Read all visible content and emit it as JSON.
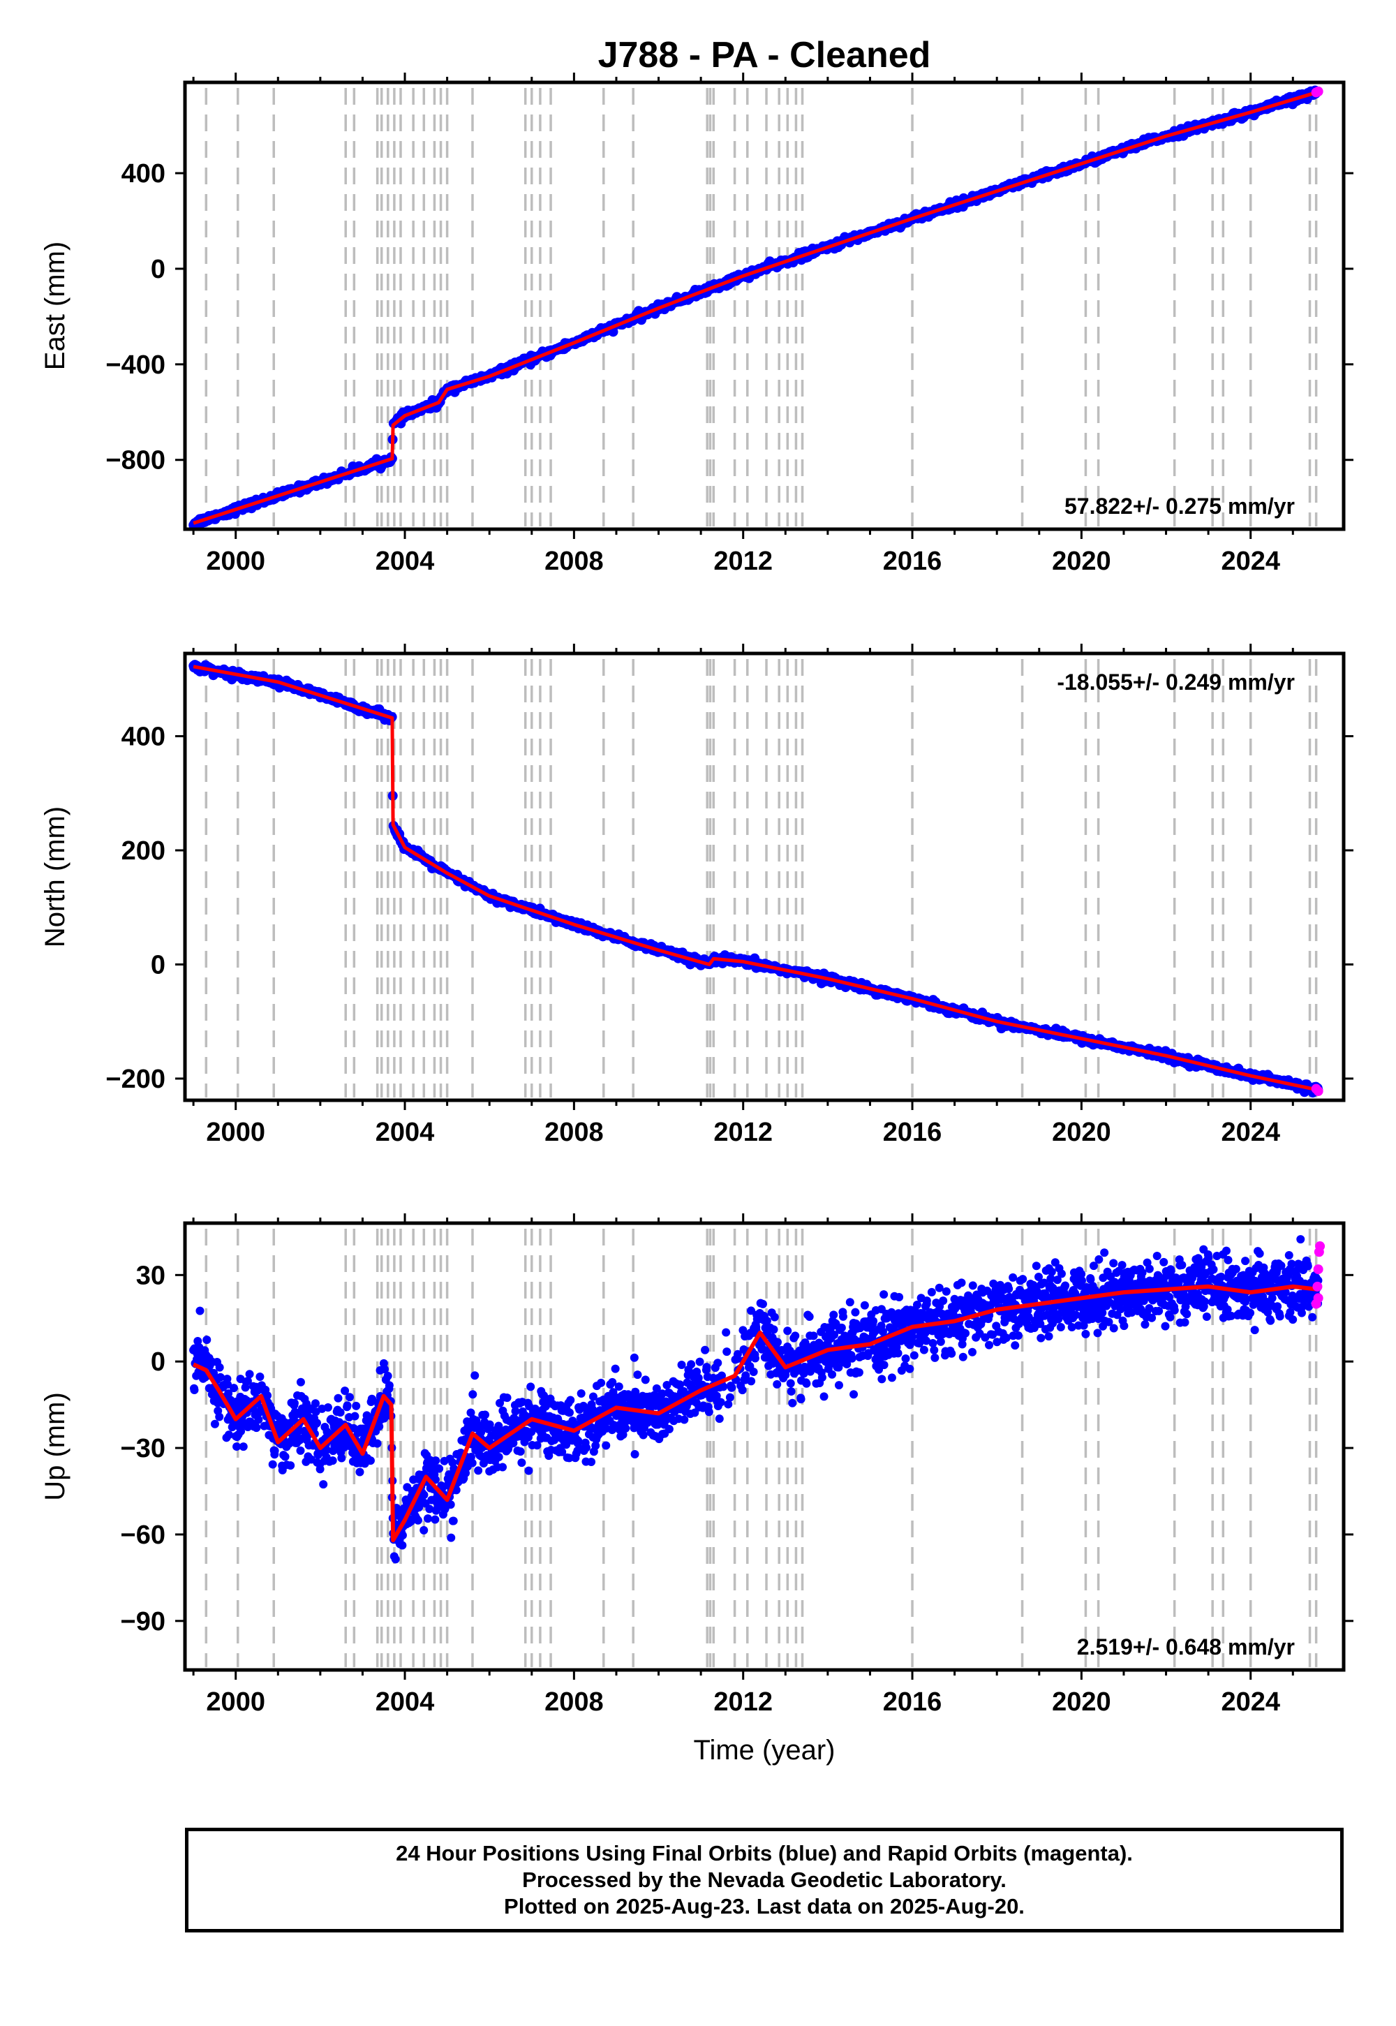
{
  "title": "J788  - PA - Cleaned",
  "footer": {
    "line1": "24 Hour Positions Using Final Orbits (blue) and Rapid Orbits (magenta).",
    "line2": "Processed by the Nevada Geodetic Laboratory.",
    "line3": "Plotted on 2025-Aug-23. Last data on 2025-Aug-20."
  },
  "colors": {
    "final_orbits": "#0000ff",
    "rapid_orbits": "#ff00ff",
    "model_fit": "#ff0000",
    "equipment_change_lines": "#bdbdbd"
  },
  "chart_data": [
    {
      "type": "scatter",
      "name": "east",
      "ylabel": "East (mm)",
      "xlabel": "",
      "xlim": [
        1998.8,
        2026.2
      ],
      "ylim": [
        -1090,
        780
      ],
      "x_ticks": [
        2000,
        2004,
        2008,
        2012,
        2016,
        2020,
        2024
      ],
      "y_ticks": [
        -800,
        -400,
        0,
        400
      ],
      "y_tick_labels": [
        "−800",
        "−400",
        "0",
        "400"
      ],
      "x_tick_labels": [
        "2000",
        "2004",
        "2008",
        "2012",
        "2016",
        "2020",
        "2024"
      ],
      "rate_label": "57.822+/- 0.275 mm/yr",
      "rate_label_position": "bottom-right",
      "grid": false,
      "line_points": [
        {
          "x": 1999.0,
          "y": -1065
        },
        {
          "x": 2003.7,
          "y": -795
        },
        {
          "x": 2003.72,
          "y": -655
        },
        {
          "x": 2004.0,
          "y": -615
        },
        {
          "x": 2004.8,
          "y": -560
        },
        {
          "x": 2005.0,
          "y": -505
        },
        {
          "x": 2006.0,
          "y": -450
        },
        {
          "x": 2008.0,
          "y": -310
        },
        {
          "x": 2010.0,
          "y": -165
        },
        {
          "x": 2012.0,
          "y": -30
        },
        {
          "x": 2014.0,
          "y": 90
        },
        {
          "x": 2016.0,
          "y": 210
        },
        {
          "x": 2018.0,
          "y": 325
        },
        {
          "x": 2020.0,
          "y": 440
        },
        {
          "x": 2022.0,
          "y": 555
        },
        {
          "x": 2024.0,
          "y": 655
        },
        {
          "x": 2025.6,
          "y": 740
        }
      ],
      "rapid_points": [
        {
          "x": 2025.55,
          "y": 738
        },
        {
          "x": 2025.6,
          "y": 742
        }
      ]
    },
    {
      "type": "scatter",
      "name": "north",
      "ylabel": "North (mm)",
      "xlabel": "",
      "xlim": [
        1998.8,
        2026.2
      ],
      "ylim": [
        -238,
        545
      ],
      "x_ticks": [
        2000,
        2004,
        2008,
        2012,
        2016,
        2020,
        2024
      ],
      "y_ticks": [
        -200,
        0,
        200,
        400
      ],
      "y_tick_labels": [
        "−200",
        "0",
        "200",
        "400"
      ],
      "x_tick_labels": [
        "2000",
        "2004",
        "2008",
        "2012",
        "2016",
        "2020",
        "2024"
      ],
      "rate_label": "-18.055+/- 0.249 mm/yr",
      "rate_label_position": "top-right",
      "grid": false,
      "line_points": [
        {
          "x": 1999.0,
          "y": 522
        },
        {
          "x": 2001.0,
          "y": 495
        },
        {
          "x": 2003.7,
          "y": 432
        },
        {
          "x": 2003.72,
          "y": 245
        },
        {
          "x": 2004.0,
          "y": 205
        },
        {
          "x": 2005.0,
          "y": 160
        },
        {
          "x": 2006.0,
          "y": 120
        },
        {
          "x": 2008.0,
          "y": 70
        },
        {
          "x": 2010.0,
          "y": 25
        },
        {
          "x": 2011.2,
          "y": 0
        },
        {
          "x": 2011.3,
          "y": 10
        },
        {
          "x": 2012.0,
          "y": 5
        },
        {
          "x": 2014.0,
          "y": -25
        },
        {
          "x": 2016.0,
          "y": -60
        },
        {
          "x": 2018.0,
          "y": -100
        },
        {
          "x": 2020.0,
          "y": -130
        },
        {
          "x": 2022.0,
          "y": -160
        },
        {
          "x": 2024.0,
          "y": -195
        },
        {
          "x": 2025.6,
          "y": -220
        }
      ],
      "rapid_points": [
        {
          "x": 2025.55,
          "y": -218
        },
        {
          "x": 2025.6,
          "y": -222
        }
      ]
    },
    {
      "type": "scatter",
      "name": "up",
      "ylabel": "Up (mm)",
      "xlabel": "Time (year)",
      "xlim": [
        1998.8,
        2026.2
      ],
      "ylim": [
        -107,
        48
      ],
      "x_ticks": [
        2000,
        2004,
        2008,
        2012,
        2016,
        2020,
        2024
      ],
      "y_ticks": [
        -90,
        -60,
        -30,
        0,
        30
      ],
      "y_tick_labels": [
        "−90",
        "−60",
        "−30",
        "0",
        "30"
      ],
      "x_tick_labels": [
        "2000",
        "2004",
        "2008",
        "2012",
        "2016",
        "2020",
        "2024"
      ],
      "rate_label": "2.519+/- 0.648 mm/yr",
      "rate_label_position": "bottom-right",
      "grid": false,
      "line_points": [
        {
          "x": 1999.0,
          "y": -1
        },
        {
          "x": 1999.3,
          "y": -3
        },
        {
          "x": 1999.6,
          "y": -10
        },
        {
          "x": 2000.0,
          "y": -20
        },
        {
          "x": 2000.6,
          "y": -12
        },
        {
          "x": 2001.0,
          "y": -28
        },
        {
          "x": 2001.6,
          "y": -20
        },
        {
          "x": 2002.0,
          "y": -30
        },
        {
          "x": 2002.6,
          "y": -22
        },
        {
          "x": 2003.0,
          "y": -32
        },
        {
          "x": 2003.5,
          "y": -12
        },
        {
          "x": 2003.68,
          "y": -15
        },
        {
          "x": 2003.72,
          "y": -62
        },
        {
          "x": 2004.0,
          "y": -55
        },
        {
          "x": 2004.5,
          "y": -40
        },
        {
          "x": 2005.0,
          "y": -48
        },
        {
          "x": 2005.6,
          "y": -25
        },
        {
          "x": 2006.0,
          "y": -30
        },
        {
          "x": 2007.0,
          "y": -20
        },
        {
          "x": 2008.0,
          "y": -24
        },
        {
          "x": 2009.0,
          "y": -16
        },
        {
          "x": 2010.0,
          "y": -18
        },
        {
          "x": 2011.0,
          "y": -10
        },
        {
          "x": 2011.8,
          "y": -5
        },
        {
          "x": 2012.4,
          "y": 10
        },
        {
          "x": 2013.0,
          "y": -2
        },
        {
          "x": 2014.0,
          "y": 4
        },
        {
          "x": 2015.0,
          "y": 6
        },
        {
          "x": 2016.0,
          "y": 12
        },
        {
          "x": 2017.0,
          "y": 14
        },
        {
          "x": 2018.0,
          "y": 18
        },
        {
          "x": 2019.0,
          "y": 20
        },
        {
          "x": 2020.0,
          "y": 22
        },
        {
          "x": 2021.0,
          "y": 24
        },
        {
          "x": 2022.0,
          "y": 25
        },
        {
          "x": 2023.0,
          "y": 26
        },
        {
          "x": 2024.0,
          "y": 24
        },
        {
          "x": 2025.0,
          "y": 26
        },
        {
          "x": 2025.6,
          "y": 25
        }
      ],
      "rapid_points": [
        {
          "x": 2025.55,
          "y": 20
        },
        {
          "x": 2025.58,
          "y": 26
        },
        {
          "x": 2025.6,
          "y": 32
        },
        {
          "x": 2025.62,
          "y": 38
        },
        {
          "x": 2025.64,
          "y": 40
        },
        {
          "x": 2025.6,
          "y": 22
        }
      ]
    }
  ],
  "equipment_change_years": [
    1999.3,
    2000.05,
    2000.9,
    2002.6,
    2002.8,
    2003.35,
    2003.45,
    2003.6,
    2003.75,
    2003.9,
    2004.2,
    2004.45,
    2004.7,
    2004.85,
    2005.0,
    2005.6,
    2006.85,
    2007.0,
    2007.2,
    2007.45,
    2008.7,
    2009.4,
    2011.15,
    2011.22,
    2011.3,
    2011.8,
    2012.1,
    2012.55,
    2012.85,
    2013.05,
    2013.25,
    2013.4,
    2016.0,
    2018.6,
    2020.1,
    2020.4,
    2022.2,
    2023.1,
    2023.35,
    2024.0,
    2025.4,
    2025.55
  ]
}
